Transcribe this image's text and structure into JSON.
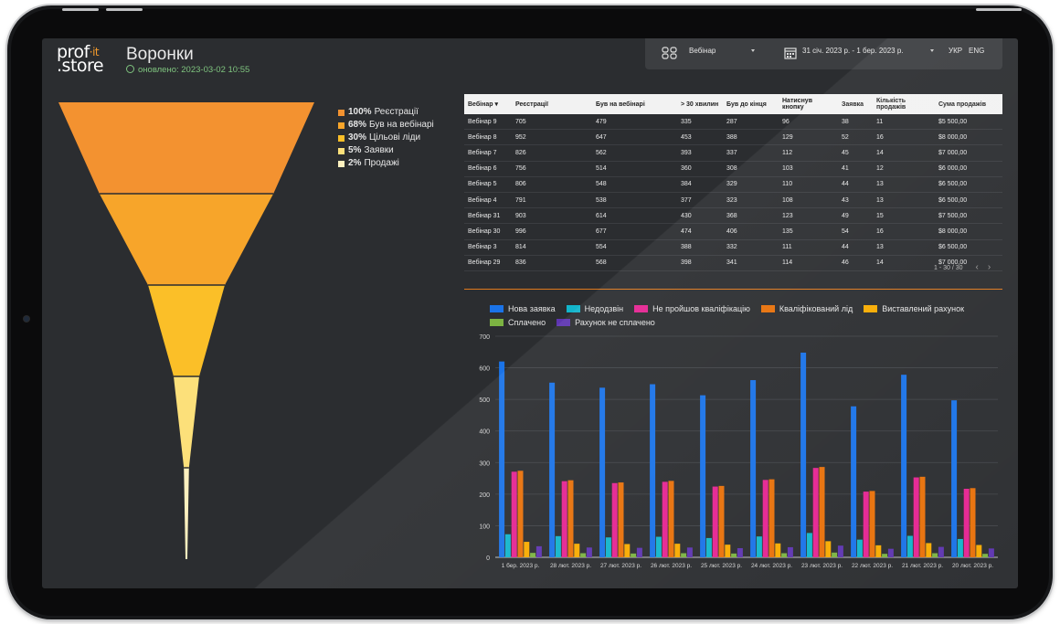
{
  "app": {
    "logo": {
      "line1_pre": "prof",
      "line1_accent": "·it",
      "line2": ".store"
    },
    "title": "Воронки",
    "updated": "оновлено: 2023-03-02 10:55"
  },
  "filters": {
    "webinar_label": "Вебінар",
    "date_range": "31 січ. 2023 р. - 1 бер. 2023 р.",
    "lang_uk": "УКР",
    "lang_en": "ENG"
  },
  "funnel": {
    "stages": [
      {
        "pct": "100%",
        "label": "Реєстрації",
        "value": 100,
        "color": "#f39230"
      },
      {
        "pct": "68%",
        "label": "Був на вебінарі",
        "value": 68,
        "color": "#f7a52a"
      },
      {
        "pct": "30%",
        "label": "Цільові ліди",
        "value": 30,
        "color": "#fbbf28"
      },
      {
        "pct": "5%",
        "label": "Заявки",
        "value": 5,
        "color": "#fce07a"
      },
      {
        "pct": "2%",
        "label": "Продажі",
        "value": 2,
        "color": "#fdf0bf"
      }
    ]
  },
  "table": {
    "headers": [
      "Вебінар ▾",
      "Реєстрації",
      "Був на вебінарі",
      "> 30 хвилин",
      "Був до кінця",
      "Натиснув кнопку",
      "Заявка",
      "Кількість продажів",
      "Сума продажів"
    ],
    "rows": [
      [
        "Вебінар 9",
        "705",
        "479",
        "335",
        "287",
        "96",
        "38",
        "11",
        "$5 500,00"
      ],
      [
        "Вебінар 8",
        "952",
        "647",
        "453",
        "388",
        "129",
        "52",
        "16",
        "$8 000,00"
      ],
      [
        "Вебінар 7",
        "826",
        "562",
        "393",
        "337",
        "112",
        "45",
        "14",
        "$7 000,00"
      ],
      [
        "Вебінар 6",
        "756",
        "514",
        "360",
        "308",
        "103",
        "41",
        "12",
        "$6 000,00"
      ],
      [
        "Вебінар 5",
        "806",
        "548",
        "384",
        "329",
        "110",
        "44",
        "13",
        "$6 500,00"
      ],
      [
        "Вебінар 4",
        "791",
        "538",
        "377",
        "323",
        "108",
        "43",
        "13",
        "$6 500,00"
      ],
      [
        "Вебінар 31",
        "903",
        "614",
        "430",
        "368",
        "123",
        "49",
        "15",
        "$7 500,00"
      ],
      [
        "Вебінар 30",
        "996",
        "677",
        "474",
        "406",
        "135",
        "54",
        "16",
        "$8 000,00"
      ],
      [
        "Вебінар 3",
        "814",
        "554",
        "388",
        "332",
        "111",
        "44",
        "13",
        "$6 500,00"
      ],
      [
        "Вебінар 29",
        "836",
        "568",
        "398",
        "341",
        "114",
        "46",
        "14",
        "$7 000,00"
      ]
    ],
    "pager": "1 - 30 / 30"
  },
  "chart_data": {
    "type": "bar",
    "categories": [
      "1 бер. 2023 р.",
      "28 лют. 2023 р.",
      "27 лют. 2023 р.",
      "26 лют. 2023 р.",
      "25 лют. 2023 р.",
      "24 лют. 2023 р.",
      "23 лют. 2023 р.",
      "22 лют. 2023 р.",
      "21 лют. 2023 р.",
      "20 лют. 2023 р."
    ],
    "ylim": [
      0,
      700
    ],
    "yticks": [
      0,
      100,
      200,
      300,
      400,
      500,
      600,
      700
    ],
    "grid": true,
    "legend_position": "top",
    "series": [
      {
        "name": "Нова заявка",
        "color": "#1a73e8",
        "values": [
          620,
          553,
          537,
          548,
          513,
          561,
          648,
          478,
          578,
          497
        ]
      },
      {
        "name": "Недодзвін",
        "color": "#12b5cb",
        "values": [
          73,
          67,
          63,
          65,
          61,
          66,
          77,
          56,
          68,
          58
        ]
      },
      {
        "name": "Не пройшов кваліфікацію",
        "color": "#e52592",
        "values": [
          271,
          241,
          235,
          239,
          224,
          245,
          283,
          208,
          253,
          217
        ]
      },
      {
        "name": "Кваліфікований лід",
        "color": "#e8710a",
        "values": [
          274,
          244,
          237,
          242,
          226,
          247,
          286,
          210,
          255,
          219
        ]
      },
      {
        "name": "Виставлений рахунок",
        "color": "#f9ab00",
        "values": [
          49,
          43,
          42,
          43,
          40,
          44,
          51,
          38,
          45,
          39
        ]
      },
      {
        "name": "Сплачено",
        "color": "#7cb342",
        "values": [
          14,
          13,
          12,
          13,
          12,
          13,
          15,
          11,
          13,
          11
        ]
      },
      {
        "name": "Рахунок не сплачено",
        "color": "#5e35b1",
        "values": [
          35,
          31,
          30,
          31,
          29,
          32,
          37,
          27,
          33,
          28
        ]
      }
    ]
  }
}
